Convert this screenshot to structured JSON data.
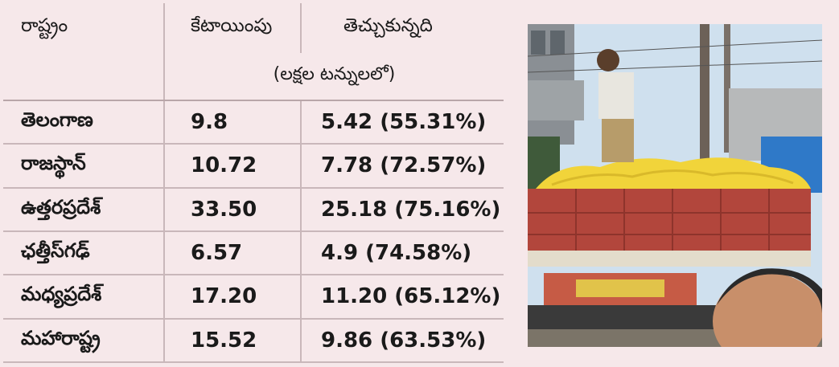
{
  "table": {
    "header": {
      "state_label": "రాష్ట్రం",
      "allocation_label": "కేటాయింపు",
      "lifted_label": "తెచ్చుకున్నది",
      "unit_label": "(లక్షల టన్నులలో)"
    },
    "rows": [
      {
        "state": "తెలంగాణ",
        "allocation": "9.8",
        "lifted": "5.42 (55.31%)"
      },
      {
        "state": "రాజస్థాన్",
        "allocation": "10.72",
        "lifted": "7.78 (72.57%)"
      },
      {
        "state": "ఉత్తరప్రదేశ్",
        "allocation": "33.50",
        "lifted": "25.18 (75.16%)"
      },
      {
        "state": "ఛత్తీస్‌గఢ్",
        "allocation": "6.57",
        "lifted": "4.9 (74.58%)"
      },
      {
        "state": "మధ్యప్రదేశ్",
        "allocation": "17.20",
        "lifted": "11.20 (65.12%)"
      },
      {
        "state": "మహారాష్ట్ర",
        "allocation": "15.52",
        "lifted": "9.86 (63.53%)"
      }
    ]
  },
  "colors": {
    "background": "#f6e8ea",
    "rule": "#c9b7ba",
    "truck_red": "#b2463c",
    "cargo_yellow": "#f1d43a",
    "sky": "#cfe0ee"
  },
  "photo": {
    "subject": "truck-loaded-with-grain-sacks"
  }
}
